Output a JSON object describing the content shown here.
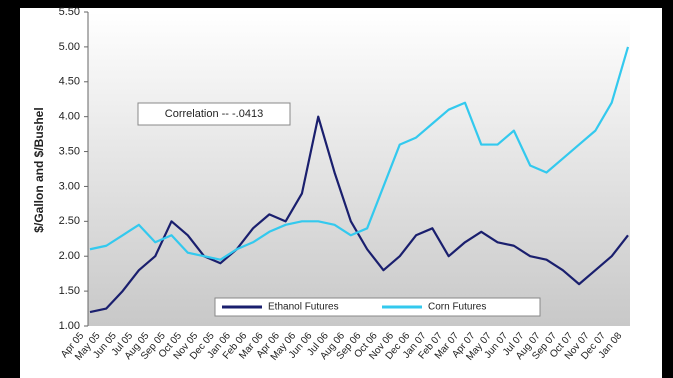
{
  "chart_data": {
    "type": "line",
    "y_label": "$/Gallon and $/Bushel",
    "annotation": "Correlation -- -.0413",
    "categories": [
      "Apr 05",
      "May 05",
      "Jun 05",
      "Jul 05",
      "Aug 05",
      "Sep 05",
      "Oct 05",
      "Nov 05",
      "Dec 05",
      "Jan 06",
      "Feb 06",
      "Mar 06",
      "Apr 06",
      "May 06",
      "Jun 06",
      "Jul 06",
      "Aug 06",
      "Sep 06",
      "Oct 06",
      "Nov 06",
      "Dec 06",
      "Jan 07",
      "Feb 07",
      "Mar 07",
      "Apr 07",
      "May 07",
      "Jun 07",
      "Jul 07",
      "Aug 07",
      "Sep 07",
      "Oct 07",
      "Nov 07",
      "Dec 07",
      "Jan 08"
    ],
    "series": [
      {
        "name": "Ethanol Futures",
        "color": "#1a1f6e",
        "values": [
          1.2,
          1.25,
          1.5,
          1.8,
          2.0,
          2.5,
          2.3,
          2.0,
          1.9,
          2.1,
          2.4,
          2.6,
          2.5,
          2.9,
          4.0,
          3.2,
          2.5,
          2.1,
          1.8,
          2.0,
          2.3,
          2.4,
          2.0,
          2.2,
          2.35,
          2.2,
          2.15,
          2.0,
          1.95,
          1.8,
          1.6,
          1.8,
          2.0,
          2.3
        ]
      },
      {
        "name": "Corn Futures",
        "color": "#33c9ee",
        "values": [
          2.1,
          2.15,
          2.3,
          2.45,
          2.2,
          2.3,
          2.05,
          2.0,
          1.95,
          2.1,
          2.2,
          2.35,
          2.45,
          2.5,
          2.5,
          2.45,
          2.3,
          2.4,
          3.0,
          3.6,
          3.7,
          3.9,
          4.1,
          4.2,
          3.6,
          3.6,
          3.8,
          3.3,
          3.2,
          3.4,
          3.6,
          3.8,
          4.2,
          5.0
        ]
      }
    ],
    "ylim": [
      1.0,
      5.5
    ],
    "yticks": [
      {
        "value": 1.0,
        "label": "1.00"
      },
      {
        "value": 1.5,
        "label": "1.50"
      },
      {
        "value": 2.0,
        "label": "2.00"
      },
      {
        "value": 2.5,
        "label": "2.50"
      },
      {
        "value": 3.0,
        "label": "3.00"
      },
      {
        "value": 3.5,
        "label": "3.50"
      },
      {
        "value": 4.0,
        "label": "4.00"
      },
      {
        "value": 4.5,
        "label": "4.50"
      },
      {
        "value": 5.0,
        "label": "5.00"
      },
      {
        "value": 5.5,
        "label": "5.50"
      }
    ],
    "legend": "bottom"
  }
}
